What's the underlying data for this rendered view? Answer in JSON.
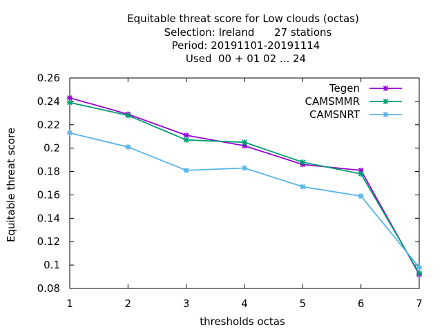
{
  "chart_data": {
    "type": "line",
    "title_lines": [
      "Equitable threat score  for Low clouds (octas)",
      "Selection: Ireland      27 stations",
      "Period: 20191101-20191114",
      "Used  00 + 01 02 ... 24"
    ],
    "xlabel": "thresholds octas",
    "ylabel": "Equitable threat score",
    "x": [
      1,
      2,
      3,
      4,
      5,
      6,
      7
    ],
    "xlim": [
      1,
      7
    ],
    "ylim": [
      0.08,
      0.26
    ],
    "xticks": [
      "1",
      "2",
      "3",
      "4",
      "5",
      "6",
      "7"
    ],
    "yticks": [
      "0.08",
      "0.1",
      "0.12",
      "0.14",
      "0.16",
      "0.18",
      "0.2",
      "0.22",
      "0.24",
      "0.26"
    ],
    "grid": false,
    "legend_position": "top-right",
    "series": [
      {
        "name": "Tegen",
        "color": "#9400d3",
        "values": [
          0.243,
          0.229,
          0.211,
          0.202,
          0.186,
          0.181,
          0.092
        ]
      },
      {
        "name": "CAMSMMR",
        "color": "#009e73",
        "values": [
          0.239,
          0.228,
          0.207,
          0.205,
          0.188,
          0.178,
          0.093
        ]
      },
      {
        "name": "CAMSNRT",
        "color": "#56b4e9",
        "values": [
          0.213,
          0.201,
          0.181,
          0.183,
          0.167,
          0.159,
          0.098
        ]
      }
    ]
  }
}
